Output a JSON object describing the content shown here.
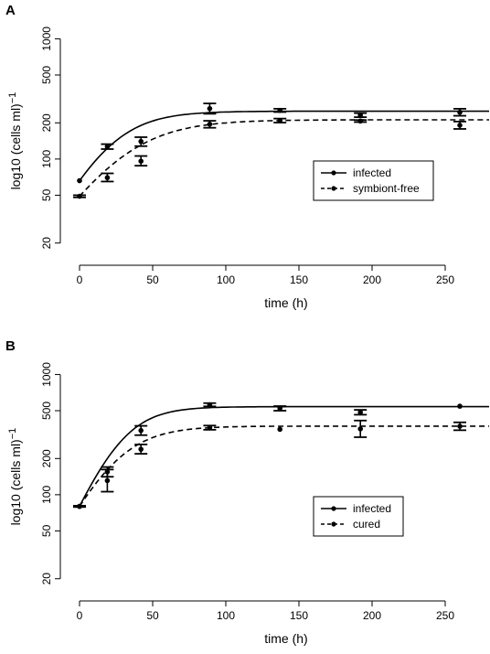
{
  "panels": [
    {
      "label": "A",
      "chart_data": {
        "type": "line",
        "xlabel": "time (h)",
        "ylabel": "log10 (cells ml)",
        "ylabel_sup": "−1",
        "xlim": [
          -8,
          280
        ],
        "ylim": [
          17,
          1100
        ],
        "yscale": "log",
        "xticks": [
          0,
          50,
          100,
          150,
          200,
          250
        ],
        "yticks": [
          20,
          50,
          100,
          200,
          500,
          1000
        ],
        "grid": false,
        "legend_position": "right",
        "series": [
          {
            "name": "infected",
            "style": "solid",
            "points": [
              {
                "x": 0,
                "y": 66,
                "lo": 66,
                "hi": 66
              },
              {
                "x": 19,
                "y": 127,
                "lo": 121,
                "hi": 133
              },
              {
                "x": 42,
                "y": 140,
                "lo": 128,
                "hi": 152
              },
              {
                "x": 89,
                "y": 263,
                "lo": 238,
                "hi": 290
              },
              {
                "x": 137,
                "y": 254,
                "lo": 246,
                "hi": 262
              },
              {
                "x": 192,
                "y": 232,
                "lo": 223,
                "hi": 241
              },
              {
                "x": 260,
                "y": 245,
                "lo": 229,
                "hi": 262
              }
            ],
            "curve": {
              "y0": 66,
              "ymax": 250,
              "rate": 0.052
            }
          },
          {
            "name": "symbiont-free",
            "style": "dashed",
            "points": [
              {
                "x": 0,
                "y": 49,
                "lo": 48,
                "hi": 50
              },
              {
                "x": 19,
                "y": 70,
                "lo": 65,
                "hi": 76
              },
              {
                "x": 42,
                "y": 96,
                "lo": 88,
                "hi": 106
              },
              {
                "x": 89,
                "y": 195,
                "lo": 182,
                "hi": 208
              },
              {
                "x": 137,
                "y": 209,
                "lo": 201,
                "hi": 217
              },
              {
                "x": 192,
                "y": 207,
                "lo": 203,
                "hi": 211
              },
              {
                "x": 260,
                "y": 191,
                "lo": 178,
                "hi": 205
              }
            ],
            "curve": {
              "y0": 49,
              "ymax": 212,
              "rate": 0.04
            }
          }
        ]
      }
    },
    {
      "label": "B",
      "chart_data": {
        "type": "line",
        "xlabel": "time (h)",
        "ylabel": "log10 (cells ml)",
        "ylabel_sup": "−1",
        "xlim": [
          -8,
          280
        ],
        "ylim": [
          17,
          1100
        ],
        "yscale": "log",
        "xticks": [
          0,
          50,
          100,
          150,
          200,
          250
        ],
        "yticks": [
          20,
          50,
          100,
          200,
          500,
          1000
        ],
        "grid": false,
        "legend_position": "right",
        "series": [
          {
            "name": "infected",
            "style": "solid",
            "points": [
              {
                "x": 0,
                "y": 80,
                "lo": 80,
                "hi": 80
              },
              {
                "x": 19,
                "y": 155,
                "lo": 141,
                "hi": 170
              },
              {
                "x": 42,
                "y": 342,
                "lo": 313,
                "hi": 374
              },
              {
                "x": 89,
                "y": 560,
                "lo": 543,
                "hi": 578
              },
              {
                "x": 137,
                "y": 523,
                "lo": 500,
                "hi": 546
              },
              {
                "x": 192,
                "y": 485,
                "lo": 463,
                "hi": 508
              },
              {
                "x": 260,
                "y": 545,
                "lo": 545,
                "hi": 545
              }
            ],
            "curve": {
              "y0": 80,
              "ymax": 540,
              "rate": 0.064
            }
          },
          {
            "name": "cured",
            "style": "dashed",
            "points": [
              {
                "x": 0,
                "y": 80,
                "lo": 79,
                "hi": 81
              },
              {
                "x": 19,
                "y": 131,
                "lo": 106,
                "hi": 162
              },
              {
                "x": 42,
                "y": 239,
                "lo": 219,
                "hi": 262
              },
              {
                "x": 89,
                "y": 361,
                "lo": 347,
                "hi": 376
              },
              {
                "x": 137,
                "y": 350,
                "lo": 349,
                "hi": 352
              },
              {
                "x": 192,
                "y": 353,
                "lo": 301,
                "hi": 414
              },
              {
                "x": 260,
                "y": 371,
                "lo": 344,
                "hi": 400
              }
            ],
            "curve": {
              "y0": 80,
              "ymax": 372,
              "rate": 0.054
            }
          }
        ]
      }
    }
  ]
}
